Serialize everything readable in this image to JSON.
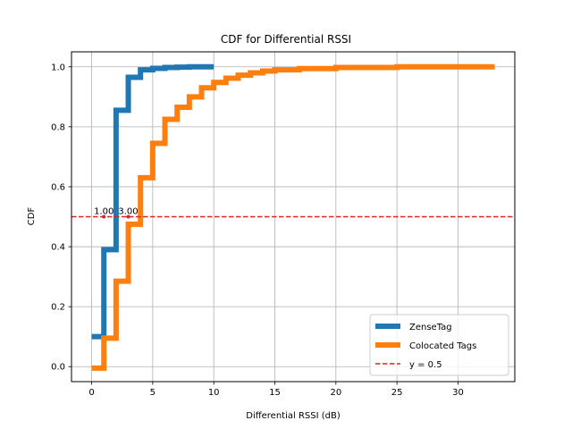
{
  "chart_data": {
    "type": "line",
    "title": "CDF for Differential RSSI",
    "xlabel": "Differential RSSI (dB)",
    "ylabel": "CDF",
    "xlim": [
      -1.65,
      34.65
    ],
    "ylim": [
      -0.05,
      1.05
    ],
    "xticks": [
      0,
      5,
      10,
      15,
      20,
      25,
      30
    ],
    "yticks": [
      0.0,
      0.2,
      0.4,
      0.6,
      0.8,
      1.0
    ],
    "xtick_labels": [
      "0",
      "5",
      "10",
      "15",
      "20",
      "25",
      "30"
    ],
    "ytick_labels": [
      "0.0",
      "0.2",
      "0.4",
      "0.6",
      "0.8",
      "1.0"
    ],
    "grid": true,
    "legend_position": "lower-right",
    "series": [
      {
        "name": "ZenseTag",
        "color": "#1f77b4",
        "step": true,
        "x": [
          0,
          1,
          2,
          3,
          4,
          5,
          6,
          7,
          8,
          10
        ],
        "y": [
          0.1,
          0.39,
          0.855,
          0.965,
          0.99,
          0.995,
          0.998,
          0.999,
          1.0,
          1.0
        ]
      },
      {
        "name": "Colocated Tags",
        "color": "#ff7f0e",
        "step": true,
        "x": [
          0,
          1,
          2,
          3,
          4,
          5,
          6,
          7,
          8,
          9,
          10,
          11,
          12,
          13,
          14,
          15,
          17,
          20,
          25,
          33
        ],
        "y": [
          -0.005,
          0.095,
          0.285,
          0.475,
          0.63,
          0.745,
          0.825,
          0.865,
          0.9,
          0.93,
          0.948,
          0.962,
          0.972,
          0.98,
          0.986,
          0.99,
          0.994,
          0.998,
          1.0,
          1.0
        ]
      }
    ],
    "reference_line": {
      "label": "y = 0.5",
      "y": 0.5,
      "color": "#d62728",
      "style": "dashed"
    },
    "annotations": [
      {
        "text": "1.00",
        "x": 1.0,
        "y": 0.5
      },
      {
        "text": "3.00",
        "x": 3.0,
        "y": 0.5
      }
    ]
  }
}
